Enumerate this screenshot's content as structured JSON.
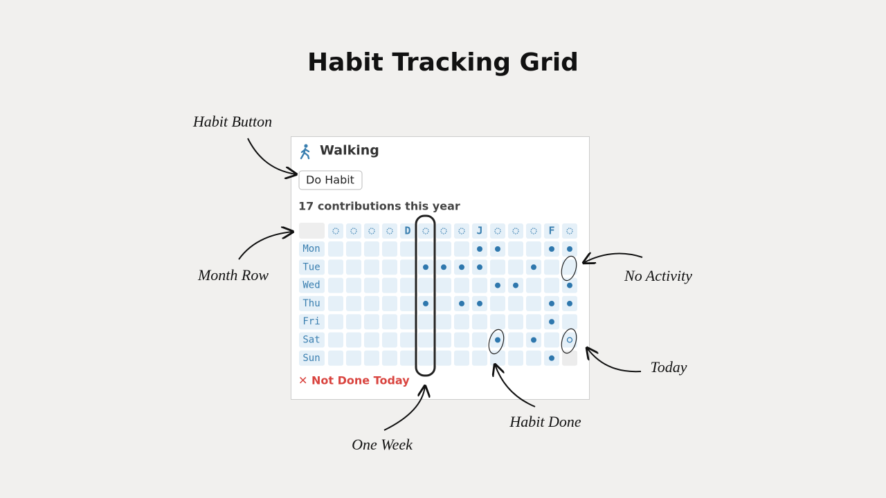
{
  "title": "Habit Tracking Grid",
  "widget": {
    "habit_name": "Walking",
    "button": "Do Habit",
    "contributions": "17 contributions this year",
    "month_row": [
      null,
      null,
      null,
      null,
      "D",
      null,
      null,
      null,
      "J",
      null,
      null,
      null,
      "F",
      null
    ],
    "days": [
      "Mon",
      "Tue",
      "Wed",
      "Thu",
      "Fri",
      "Sat",
      "Sun"
    ],
    "grid": {
      "rows": [
        {
          "cells": [
            0,
            0,
            0,
            0,
            0,
            0,
            0,
            0,
            1,
            1,
            0,
            0,
            1,
            1
          ]
        },
        {
          "cells": [
            0,
            0,
            0,
            0,
            0,
            1,
            1,
            1,
            1,
            0,
            0,
            1,
            0,
            0
          ]
        },
        {
          "cells": [
            0,
            0,
            0,
            0,
            0,
            0,
            0,
            0,
            0,
            1,
            1,
            0,
            0,
            1
          ]
        },
        {
          "cells": [
            0,
            0,
            0,
            0,
            0,
            1,
            0,
            1,
            1,
            0,
            0,
            0,
            1,
            1
          ]
        },
        {
          "cells": [
            0,
            0,
            0,
            0,
            0,
            0,
            0,
            0,
            0,
            0,
            0,
            0,
            1,
            0
          ]
        },
        {
          "cells": [
            0,
            0,
            0,
            0,
            0,
            0,
            0,
            0,
            0,
            1,
            0,
            1,
            0,
            0
          ]
        },
        {
          "cells": [
            0,
            0,
            0,
            0,
            0,
            0,
            0,
            0,
            0,
            0,
            0,
            0,
            1,
            null
          ]
        }
      ]
    },
    "today": [
      5,
      13
    ],
    "status": "✕ Not Done Today"
  },
  "annotations": [
    "Habit Button",
    "Month Row",
    "No Activity",
    "Today",
    "Habit Done",
    "One Week"
  ]
}
